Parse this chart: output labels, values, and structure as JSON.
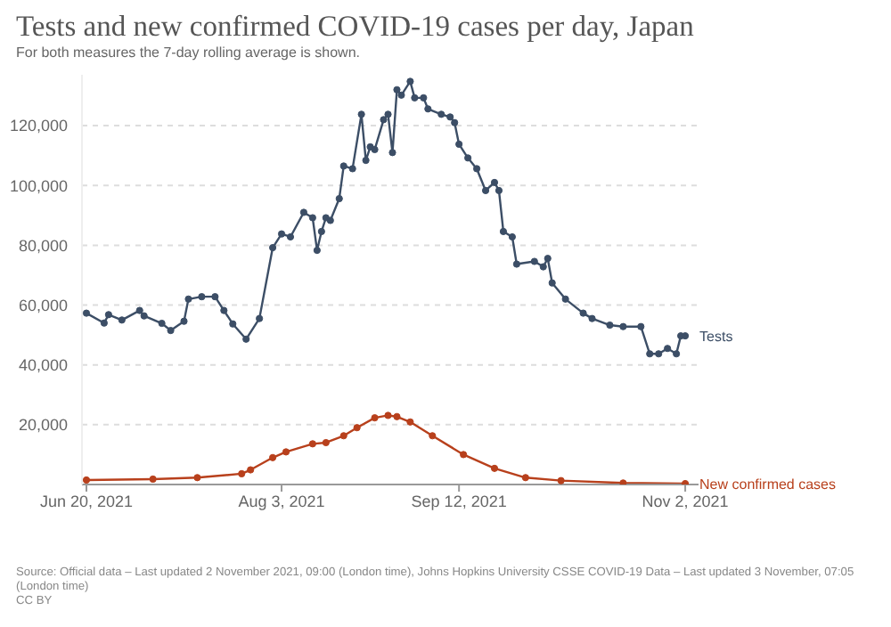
{
  "chart_data": {
    "type": "line",
    "title": "Tests and new confirmed COVID-19 cases per day, Japan",
    "subtitle": "For both measures the 7-day rolling average is shown.",
    "annotations": [
      "Source: Official data – Last updated 2 November 2021, 09:00 (London time), Johns Hopkins University CSSE COVID-19 Data – Last updated 3 November, 07:05 (London time)",
      "CC BY"
    ],
    "xlim": [
      "2021-06-19",
      "2021-11-05"
    ],
    "xticks": [
      {
        "value": "2021-06-20",
        "label": "Jun 20, 2021"
      },
      {
        "value": "2021-08-03",
        "label": "Aug 3, 2021"
      },
      {
        "value": "2021-09-12",
        "label": "Sep 12, 2021"
      },
      {
        "value": "2021-11-02",
        "label": "Nov 2, 2021"
      }
    ],
    "ylim": [
      0,
      137000
    ],
    "yticks": [
      {
        "value": 0,
        "label": null
      },
      {
        "value": 20000,
        "label": "20,000"
      },
      {
        "value": 40000,
        "label": "40,000"
      },
      {
        "value": 60000,
        "label": "60,000"
      },
      {
        "value": 80000,
        "label": "80,000"
      },
      {
        "value": 100000,
        "label": "100,000"
      },
      {
        "value": 120000,
        "label": "120,000"
      }
    ],
    "grid": "y",
    "legend": false,
    "marker": "circle",
    "line_style": "solid",
    "series": [
      {
        "name": "Tests",
        "color": "#3c4e66",
        "x": [
          "2021-06-20",
          "2021-06-24",
          "2021-06-25",
          "2021-06-28",
          "2021-07-02",
          "2021-07-03",
          "2021-07-07",
          "2021-07-09",
          "2021-07-12",
          "2021-07-13",
          "2021-07-16",
          "2021-07-19",
          "2021-07-21",
          "2021-07-23",
          "2021-07-26",
          "2021-07-29",
          "2021-08-01",
          "2021-08-03",
          "2021-08-05",
          "2021-08-08",
          "2021-08-10",
          "2021-08-11",
          "2021-08-12",
          "2021-08-13",
          "2021-08-14",
          "2021-08-16",
          "2021-08-17",
          "2021-08-19",
          "2021-08-21",
          "2021-08-22",
          "2021-08-23",
          "2021-08-24",
          "2021-08-26",
          "2021-08-27",
          "2021-08-28",
          "2021-08-29",
          "2021-08-30",
          "2021-09-01",
          "2021-09-02",
          "2021-09-04",
          "2021-09-05",
          "2021-09-08",
          "2021-09-10",
          "2021-09-11",
          "2021-09-12",
          "2021-09-14",
          "2021-09-16",
          "2021-09-18",
          "2021-09-20",
          "2021-09-21",
          "2021-09-22",
          "2021-09-24",
          "2021-09-25",
          "2021-09-29",
          "2021-10-01",
          "2021-10-02",
          "2021-10-03",
          "2021-10-06",
          "2021-10-10",
          "2021-10-12",
          "2021-10-16",
          "2021-10-19",
          "2021-10-23",
          "2021-10-25",
          "2021-10-27",
          "2021-10-29",
          "2021-10-31",
          "2021-11-01",
          "2021-11-02"
        ],
        "values": [
          57300,
          54000,
          56800,
          55000,
          58200,
          56400,
          53900,
          51500,
          54600,
          62000,
          62800,
          62800,
          58200,
          53700,
          48600,
          55500,
          79200,
          83800,
          82800,
          91000,
          89200,
          78300,
          84600,
          89200,
          88300,
          95600,
          106500,
          105600,
          123800,
          108400,
          112900,
          112000,
          122000,
          123800,
          111000,
          132000,
          130200,
          134800,
          129300,
          129300,
          125600,
          123800,
          122900,
          121000,
          113800,
          109200,
          105600,
          98300,
          101000,
          98300,
          84600,
          82800,
          73700,
          74600,
          72800,
          75600,
          67400,
          62000,
          57300,
          55500,
          53300,
          52800,
          52800,
          43700,
          43700,
          45500,
          43700,
          49700,
          49700
        ]
      },
      {
        "name": "New confirmed cases",
        "color": "#b8401c",
        "x": [
          "2021-06-20",
          "2021-07-05",
          "2021-07-15",
          "2021-07-25",
          "2021-07-27",
          "2021-08-01",
          "2021-08-04",
          "2021-08-10",
          "2021-08-13",
          "2021-08-17",
          "2021-08-20",
          "2021-08-24",
          "2021-08-27",
          "2021-08-29",
          "2021-09-01",
          "2021-09-06",
          "2021-09-13",
          "2021-09-20",
          "2021-09-27",
          "2021-10-05",
          "2021-10-19",
          "2021-11-02"
        ],
        "values": [
          1500,
          1800,
          2300,
          3600,
          4900,
          9000,
          10900,
          13600,
          14000,
          16300,
          19000,
          22300,
          23100,
          22700,
          20900,
          16300,
          10000,
          5400,
          2300,
          1300,
          500,
          300
        ]
      }
    ]
  }
}
